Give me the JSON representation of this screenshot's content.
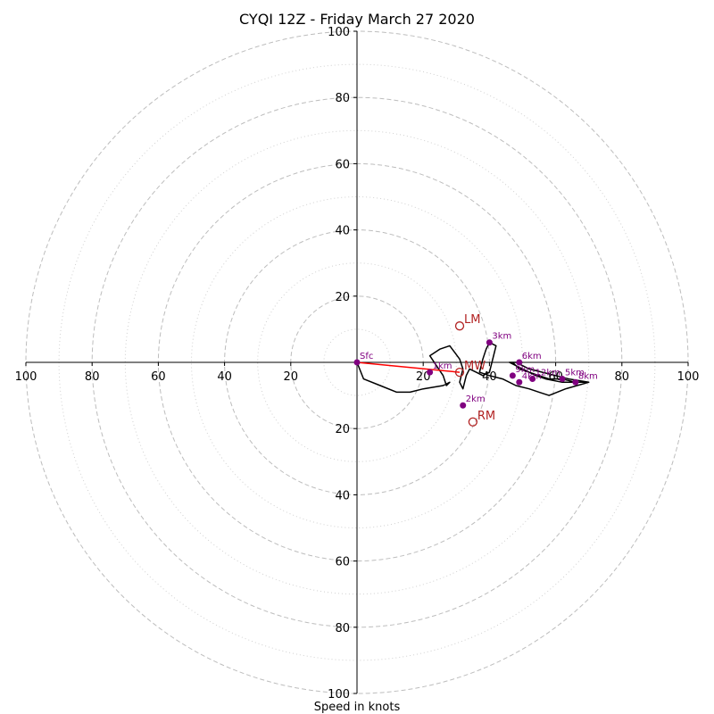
{
  "chart_data": {
    "type": "line",
    "title": "CYQI 12Z - Friday March 27 2020",
    "xlabel": "Speed in knots",
    "ylabel": "",
    "xlim": [
      -100,
      100
    ],
    "ylim": [
      -100,
      100
    ],
    "x_ticks": [
      -100,
      -80,
      -60,
      -40,
      -20,
      20,
      40,
      60,
      80,
      100
    ],
    "y_ticks": [
      -100,
      -80,
      -60,
      -40,
      -20,
      20,
      40,
      60,
      80,
      100
    ],
    "rings_major": [
      20,
      40,
      60,
      80,
      100
    ],
    "rings_minor": [
      10,
      30,
      50,
      70,
      90
    ],
    "grid": true,
    "colors": {
      "hodograph": "#000000",
      "height_marker": "#800080",
      "storm_motion": "#b22222",
      "shear_vector": "#ff0000",
      "ring_major": "#bdbdbd",
      "ring_minor": "#d0d0d0"
    },
    "hodograph": {
      "u": [
        0,
        2,
        7,
        12,
        16,
        20,
        26,
        28,
        27,
        26,
        24,
        22,
        25,
        28,
        31,
        32,
        31,
        32,
        33,
        34,
        36,
        38,
        40,
        41,
        42,
        40,
        39,
        38,
        37,
        40,
        44,
        48,
        52,
        55,
        58,
        63,
        70,
        62,
        57,
        54,
        52,
        50,
        48,
        46,
        47,
        49,
        52,
        55,
        58,
        62,
        66,
        70,
        64,
        60,
        56,
        52,
        50,
        48,
        47,
        48
      ],
      "v": [
        0,
        -5,
        -7,
        -9,
        -9,
        -8,
        -7,
        -6,
        -7,
        -4,
        -1,
        2,
        4,
        5,
        1,
        -2,
        -6,
        -8,
        -4,
        -2,
        -3,
        -4,
        -3,
        1,
        5,
        6,
        4,
        1,
        -3,
        -4,
        -5,
        -7,
        -8,
        -9,
        -10,
        -8,
        -6,
        -6,
        -5,
        -4,
        -3,
        -2,
        -1,
        0,
        0,
        -2,
        -3,
        -4,
        -5,
        -5,
        -6,
        -6,
        -5,
        -4,
        -3,
        -2,
        -1,
        0,
        0,
        -1
      ]
    },
    "height_markers": [
      {
        "label": "Sfc",
        "u": 0,
        "v": 0
      },
      {
        "label": "1km",
        "u": 22,
        "v": -3
      },
      {
        "label": "2km",
        "u": 32,
        "v": -13
      },
      {
        "label": "3km",
        "u": 40,
        "v": 6
      },
      {
        "label": "4km",
        "u": 49,
        "v": -6
      },
      {
        "label": "5km",
        "u": 62,
        "v": -5
      },
      {
        "label": "6km",
        "u": 49,
        "v": 0
      },
      {
        "label": "8km",
        "u": 66,
        "v": -6
      },
      {
        "label": "9km",
        "u": 47,
        "v": -4
      },
      {
        "label": "12km",
        "u": 53,
        "v": -5
      }
    ],
    "storm_motion": [
      {
        "label": "LM",
        "u": 31,
        "v": 11
      },
      {
        "label": "RM",
        "u": 35,
        "v": -18
      },
      {
        "label": "MW",
        "u": 31,
        "v": -3
      }
    ],
    "shear_vector": {
      "u0": 0,
      "v0": 0,
      "u1": 31,
      "v1": -3
    }
  }
}
